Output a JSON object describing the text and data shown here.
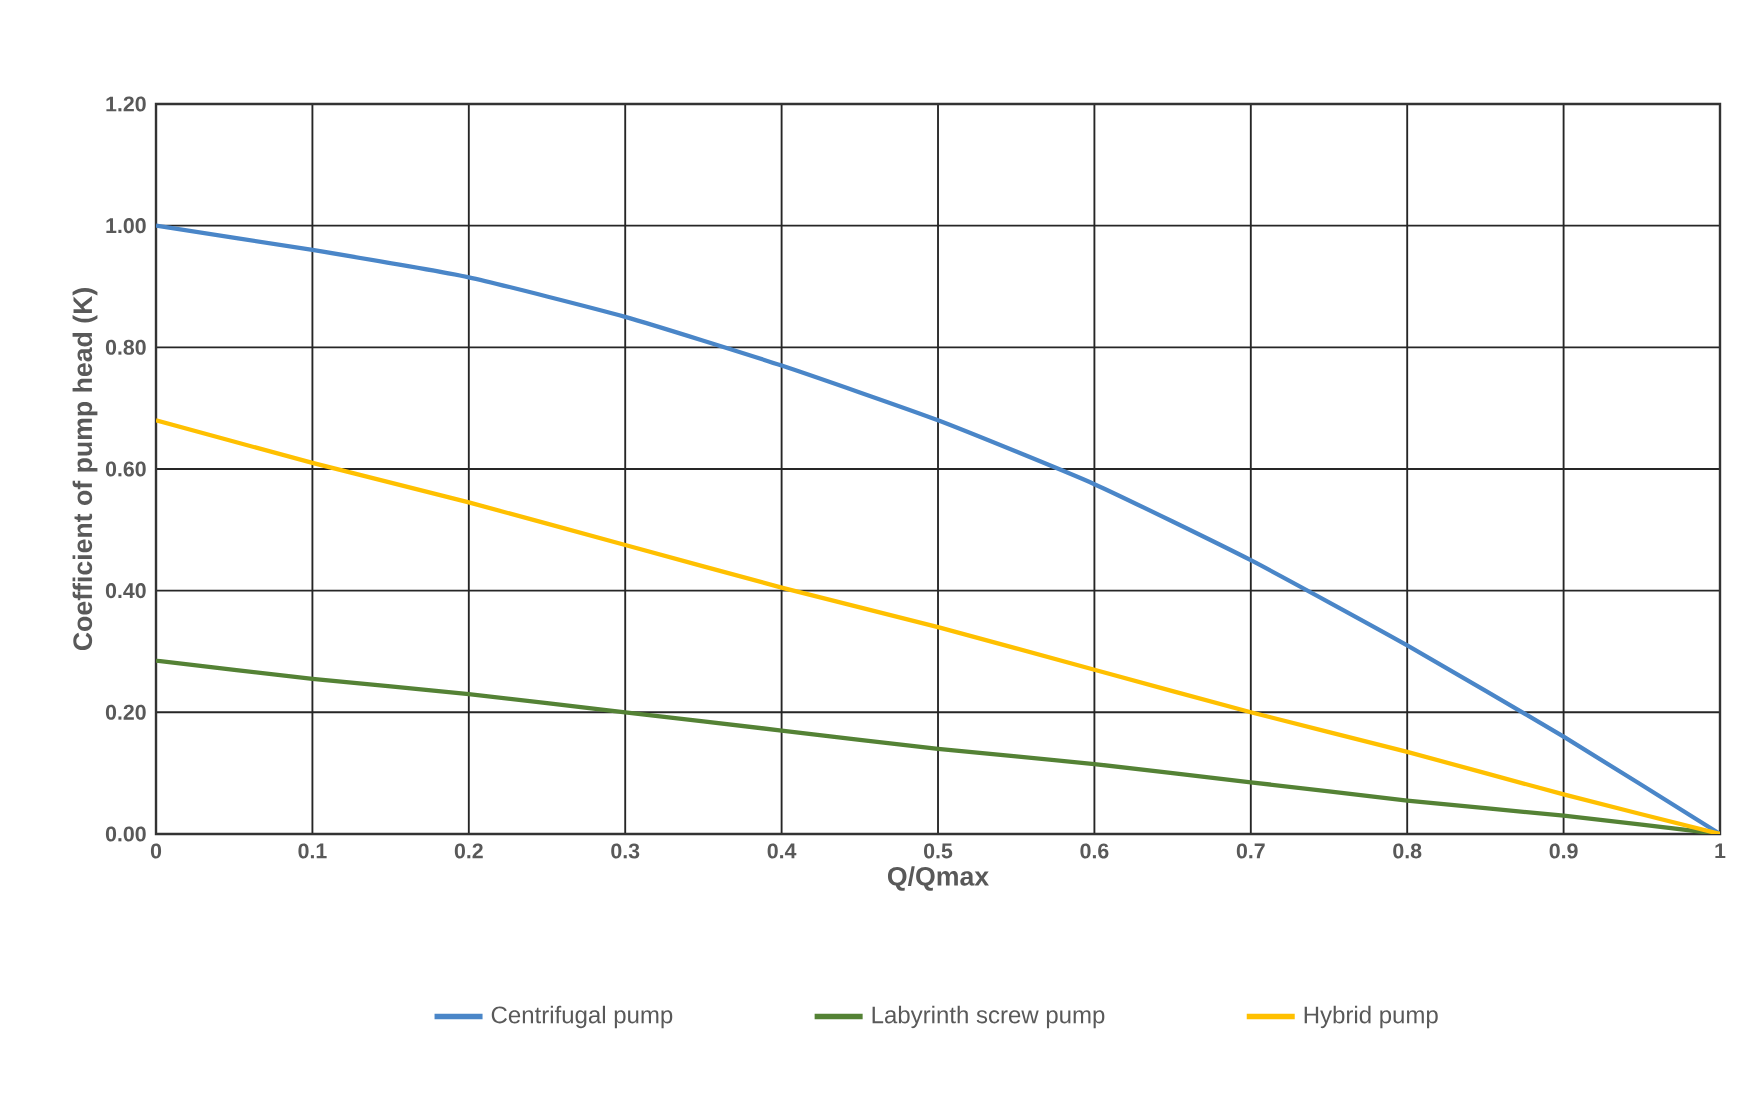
{
  "chart_data": {
    "type": "line",
    "xlabel": "Q/Qmax",
    "ylabel": "Coefficient of pump head (K)",
    "x": [
      0,
      0.1,
      0.2,
      0.3,
      0.4,
      0.5,
      0.6,
      0.7,
      0.8,
      0.9,
      1
    ],
    "series": [
      {
        "name": "Centrifugal pump",
        "color": "#4a86c8",
        "values": [
          1.0,
          0.96,
          0.915,
          0.85,
          0.77,
          0.68,
          0.575,
          0.45,
          0.31,
          0.16,
          0
        ]
      },
      {
        "name": "Labyrinth screw pump",
        "color": "#548235",
        "values": [
          0.285,
          0.255,
          0.23,
          0.2,
          0.17,
          0.14,
          0.115,
          0.085,
          0.055,
          0.03,
          0
        ]
      },
      {
        "name": "Hybrid pump",
        "color": "#ffc000",
        "values": [
          0.68,
          0.61,
          0.545,
          0.475,
          0.405,
          0.34,
          0.27,
          0.2,
          0.135,
          0.065,
          0
        ]
      }
    ],
    "xlim": [
      0,
      1
    ],
    "ylim": [
      0,
      1.2
    ],
    "xticks": [
      0,
      0.1,
      0.2,
      0.3,
      0.4,
      0.5,
      0.6,
      0.7,
      0.8,
      0.9,
      1
    ],
    "yticks": [
      {
        "value": 0,
        "label": "0.00"
      },
      {
        "value": 0.2,
        "label": "0.20"
      },
      {
        "value": 0.4,
        "label": "0.40"
      },
      {
        "value": 0.6,
        "label": "0.60"
      },
      {
        "value": 0.8,
        "label": "0.80"
      },
      {
        "value": 1.0,
        "label": "1.00"
      },
      {
        "value": 1.2,
        "label": "1.20"
      }
    ],
    "grid": true,
    "legend": "bottom",
    "marker": "none",
    "line_style": "solid"
  }
}
